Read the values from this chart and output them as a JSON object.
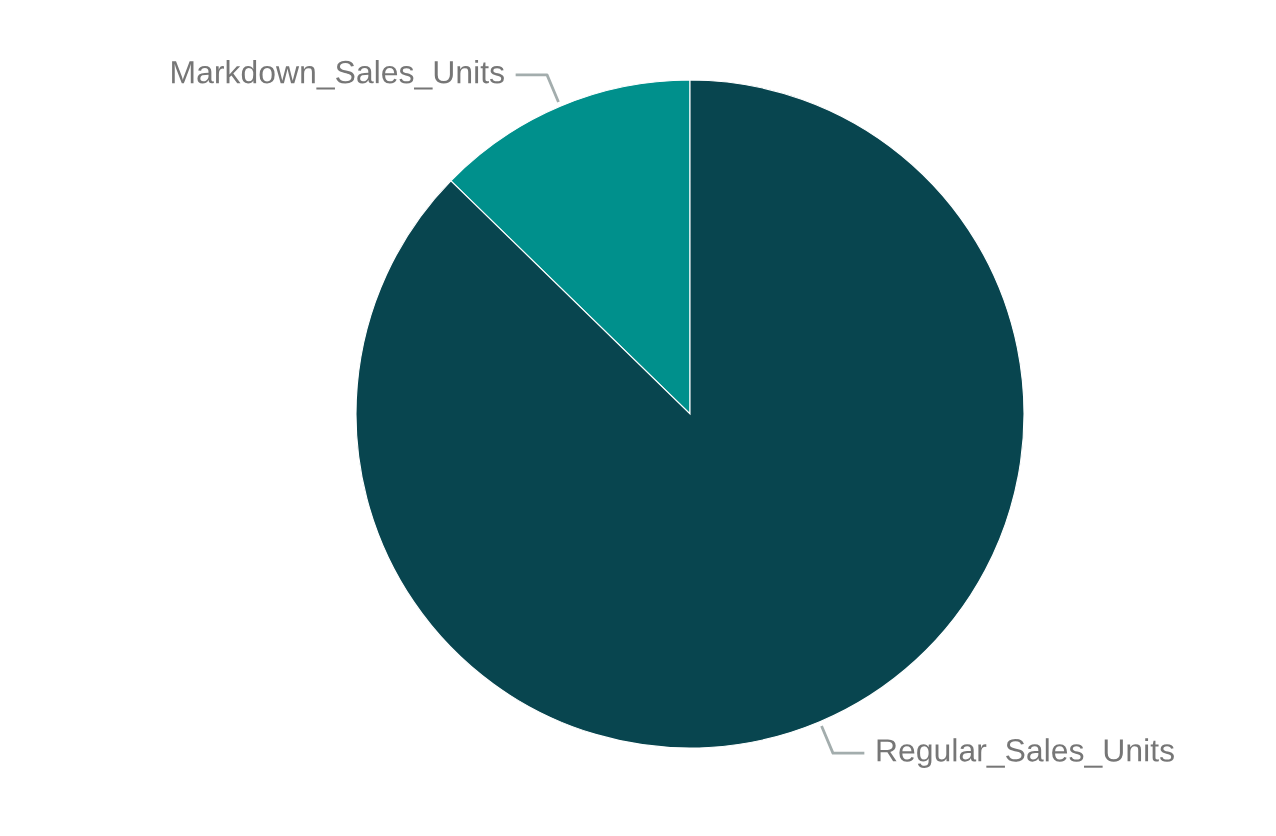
{
  "chart_data": {
    "type": "pie",
    "categories": [
      "Markdown_Sales_Units",
      "Regular_Sales_Units"
    ],
    "values": [
      12.7,
      87.3
    ],
    "colors": [
      "#00908c",
      "#08454f"
    ]
  }
}
